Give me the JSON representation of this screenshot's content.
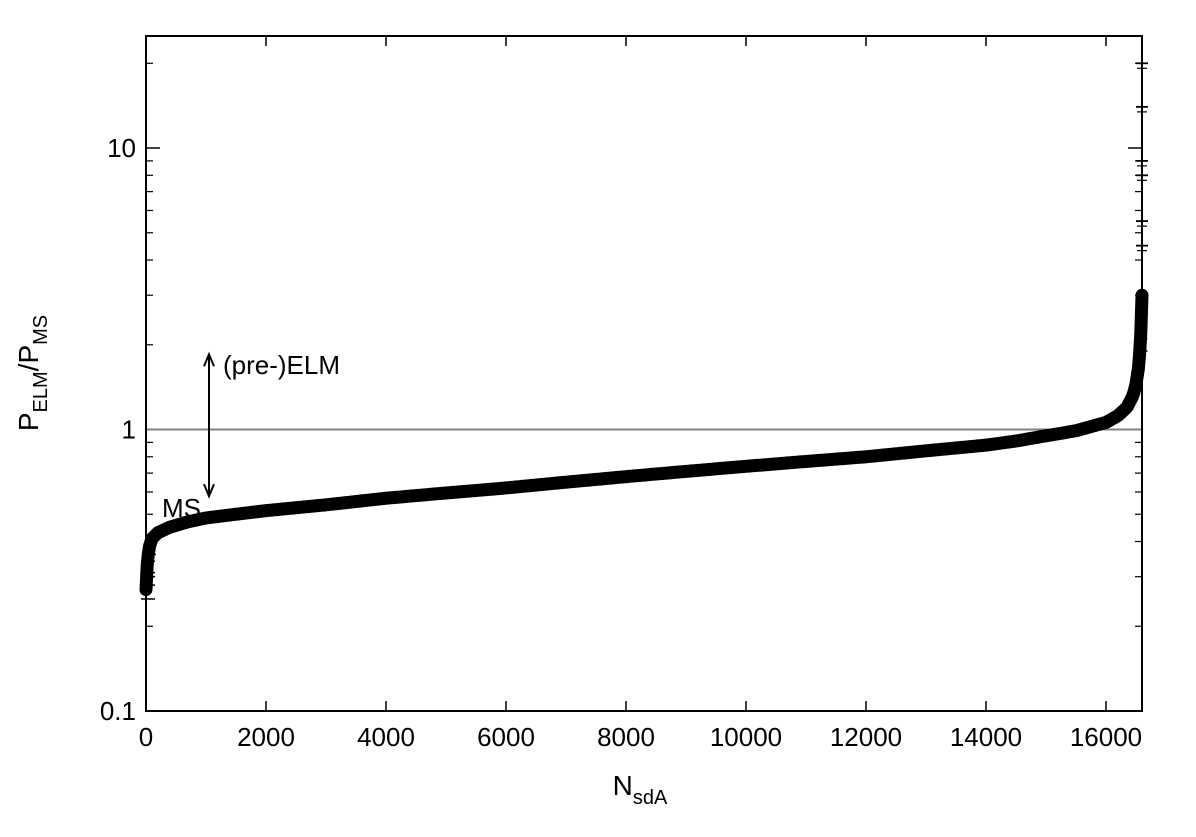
{
  "chart_data": {
    "type": "scatter",
    "title": "",
    "xlabel": {
      "main": "N",
      "sub": "sdA"
    },
    "ylabel": {
      "p1": "P",
      "s1": "ELM",
      "slash": "/",
      "p2": "P",
      "s2": "MS"
    },
    "x_ticks": [
      "0",
      "2000",
      "4000",
      "6000",
      "8000",
      "10000",
      "12000",
      "14000",
      "16000"
    ],
    "x_tick_values": [
      0,
      2000,
      4000,
      6000,
      8000,
      10000,
      12000,
      14000,
      16000
    ],
    "y_ticks": [
      "0.1",
      "1",
      "10"
    ],
    "y_tick_values": [
      0.1,
      1,
      10
    ],
    "xlim": [
      0,
      16600
    ],
    "ylim": [
      0.1,
      25
    ],
    "y_scale": "log",
    "grid": false,
    "legend": "none",
    "reference_line": {
      "y": 1,
      "color": "#808080"
    },
    "annotations": {
      "upper": "(pre-)ELM",
      "lower": "MS",
      "arrow_x": 1050
    },
    "series": [
      {
        "marker": "errorbar-point",
        "color": "#000000",
        "points": [
          [
            0,
            0.27
          ],
          [
            20,
            0.33
          ],
          [
            50,
            0.38
          ],
          [
            100,
            0.41
          ],
          [
            200,
            0.43
          ],
          [
            400,
            0.45
          ],
          [
            700,
            0.47
          ],
          [
            1000,
            0.485
          ],
          [
            1500,
            0.5
          ],
          [
            2000,
            0.515
          ],
          [
            3000,
            0.54
          ],
          [
            4000,
            0.57
          ],
          [
            5000,
            0.595
          ],
          [
            6000,
            0.62
          ],
          [
            7000,
            0.65
          ],
          [
            8000,
            0.68
          ],
          [
            9000,
            0.71
          ],
          [
            10000,
            0.74
          ],
          [
            11000,
            0.77
          ],
          [
            12000,
            0.8
          ],
          [
            13000,
            0.84
          ],
          [
            14000,
            0.88
          ],
          [
            14500,
            0.91
          ],
          [
            15000,
            0.95
          ],
          [
            15500,
            0.99
          ],
          [
            16000,
            1.06
          ],
          [
            16200,
            1.12
          ],
          [
            16350,
            1.2
          ],
          [
            16450,
            1.32
          ],
          [
            16500,
            1.45
          ],
          [
            16550,
            1.7
          ],
          [
            16580,
            2.2
          ],
          [
            16600,
            3.0
          ]
        ],
        "outliers": [
          [
            16600,
            4.5
          ],
          [
            16600,
            5.5
          ],
          [
            16600,
            8.0
          ],
          [
            16600,
            9.0
          ],
          [
            16600,
            14.0
          ],
          [
            16600,
            20.0
          ]
        ]
      }
    ]
  }
}
